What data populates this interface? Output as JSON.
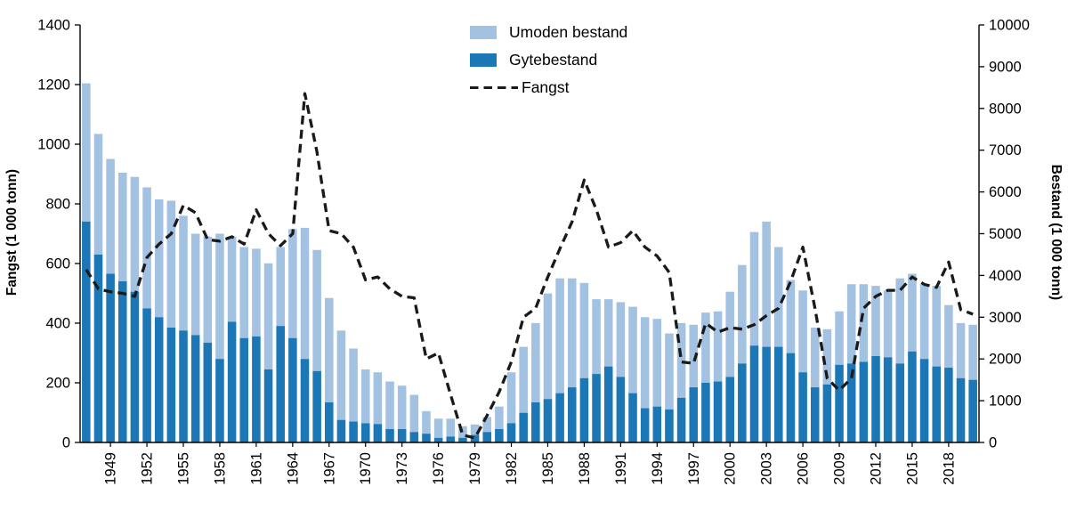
{
  "colors": {
    "umoden": "#a3c1e0",
    "gyte": "#1b77b5",
    "fangst": "#1a1a1a",
    "axis": "#000000"
  },
  "chart_data": {
    "type": "bar+line",
    "title": "",
    "x_label_start": 1949,
    "x_label_every": 3,
    "left_axis": {
      "label": "Fangst (1 000 tonn)",
      "min": 0,
      "max": 1400,
      "step": 200
    },
    "right_axis": {
      "label": "Bestand (1 000 tonn)",
      "min": 0,
      "max": 10000,
      "step": 1000
    },
    "years": [
      1947,
      1948,
      1949,
      1950,
      1951,
      1952,
      1953,
      1954,
      1955,
      1956,
      1957,
      1958,
      1959,
      1960,
      1961,
      1962,
      1963,
      1964,
      1965,
      1966,
      1967,
      1968,
      1969,
      1970,
      1971,
      1972,
      1973,
      1974,
      1975,
      1976,
      1977,
      1978,
      1979,
      1980,
      1981,
      1982,
      1983,
      1984,
      1985,
      1986,
      1987,
      1988,
      1989,
      1990,
      1991,
      1992,
      1993,
      1994,
      1995,
      1996,
      1997,
      1998,
      1999,
      2000,
      2001,
      2002,
      2003,
      2004,
      2005,
      2006,
      2007,
      2008,
      2009,
      2010,
      2011,
      2012,
      2013,
      2014,
      2015,
      2016,
      2017,
      2018,
      2019,
      2020
    ],
    "series": [
      {
        "name": "Gytebestand",
        "kind": "bar",
        "stack": "bestand",
        "axis": "right",
        "values": [
          5290,
          4500,
          4040,
          3860,
          3610,
          3210,
          3000,
          2750,
          2680,
          2570,
          2390,
          2000,
          2890,
          2500,
          2540,
          1750,
          2790,
          2500,
          2000,
          1710,
          960,
          540,
          500,
          460,
          440,
          320,
          320,
          250,
          210,
          110,
          140,
          110,
          180,
          250,
          320,
          460,
          710,
          960,
          1040,
          1180,
          1320,
          1540,
          1640,
          1820,
          1570,
          1180,
          820,
          860,
          790,
          1070,
          1320,
          1430,
          1460,
          1570,
          1890,
          2320,
          2290,
          2290,
          2140,
          1680,
          1320,
          1390,
          1860,
          1890,
          1930,
          2070,
          2040,
          1890,
          2180,
          2000,
          1820,
          1790,
          1540,
          1500
        ]
      },
      {
        "name": "Umoden bestand",
        "kind": "bar",
        "stack": "bestand",
        "axis": "right",
        "values": [
          3310,
          2890,
          2750,
          2600,
          2750,
          2900,
          2820,
          3040,
          2750,
          2430,
          2540,
          3000,
          2040,
          2180,
          2100,
          2540,
          1890,
          2610,
          3140,
          2900,
          2500,
          2140,
          1750,
          1290,
          1240,
          1140,
          1040,
          890,
          540,
          460,
          430,
          280,
          250,
          360,
          540,
          1220,
          1580,
          1900,
          2530,
          2750,
          2610,
          2280,
          1790,
          1610,
          1790,
          2070,
          2180,
          2100,
          1820,
          1790,
          1500,
          1680,
          1680,
          2040,
          2360,
          2720,
          3000,
          2390,
          1750,
          1960,
          1430,
          1320,
          1280,
          1900,
          1860,
          1680,
          1600,
          2040,
          1860,
          1790,
          1930,
          1500,
          1320,
          1320
        ]
      },
      {
        "name": "Fangst",
        "kind": "line",
        "dashed": true,
        "axis": "left",
        "values": [
          580,
          515,
          505,
          500,
          490,
          620,
          665,
          700,
          795,
          770,
          680,
          675,
          690,
          665,
          780,
          700,
          660,
          700,
          1170,
          975,
          710,
          700,
          655,
          545,
          555,
          515,
          490,
          485,
          280,
          300,
          160,
          25,
          15,
          90,
          170,
          270,
          420,
          450,
          555,
          650,
          740,
          880,
          780,
          655,
          670,
          710,
          655,
          625,
          570,
          270,
          265,
          400,
          370,
          385,
          380,
          395,
          425,
          450,
          540,
          655,
          450,
          215,
          175,
          215,
          450,
          490,
          510,
          510,
          555,
          530,
          520,
          605,
          445,
          430
        ]
      }
    ]
  }
}
